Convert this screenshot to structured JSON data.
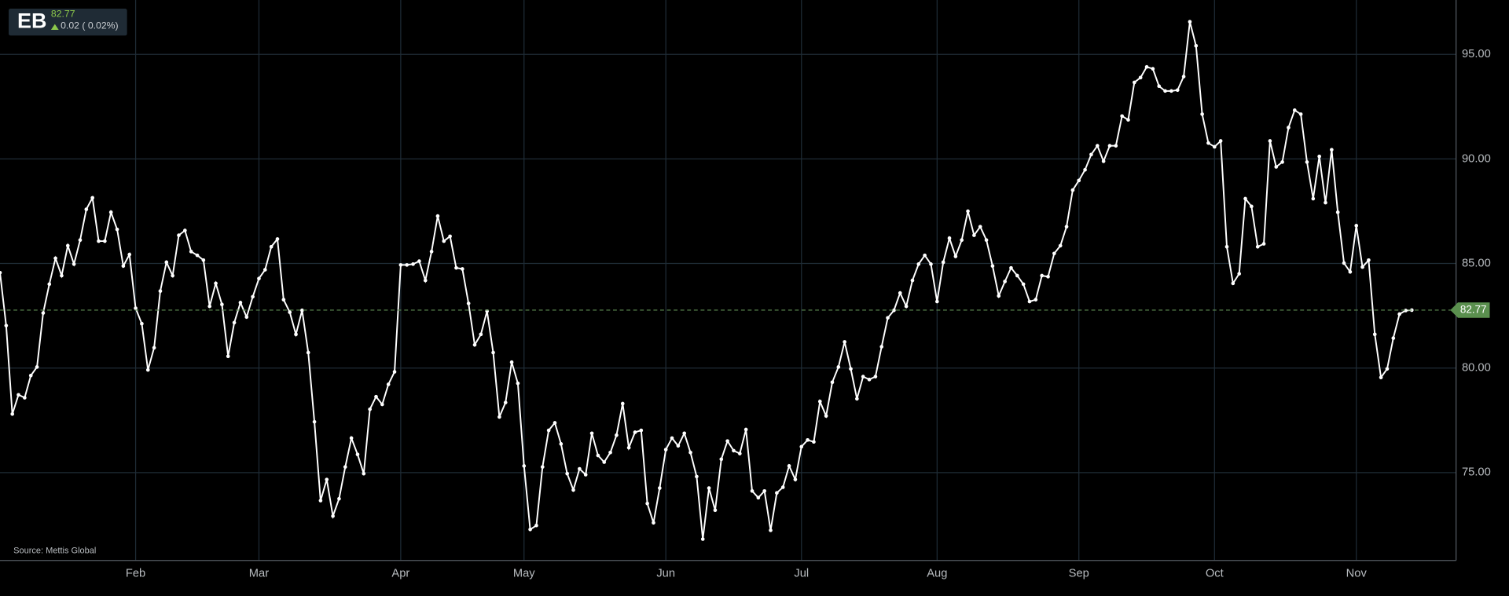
{
  "header": {
    "symbol": "EB",
    "price": "82.77",
    "change": "0.02 ( 0.02%)"
  },
  "chart_data": {
    "type": "line",
    "source": "Source: Mettis Global",
    "categories": [
      null,
      null,
      null,
      null,
      null,
      null,
      null,
      null,
      null,
      null,
      null,
      null,
      null,
      null,
      null,
      null,
      null,
      null,
      null,
      null,
      null,
      null,
      "Feb",
      null,
      null,
      null,
      null,
      null,
      null,
      null,
      null,
      null,
      null,
      null,
      null,
      null,
      null,
      null,
      null,
      null,
      null,
      null,
      "Mar",
      null,
      null,
      null,
      null,
      null,
      null,
      null,
      null,
      null,
      null,
      null,
      null,
      null,
      null,
      null,
      null,
      null,
      null,
      null,
      null,
      null,
      null,
      "Apr",
      null,
      null,
      null,
      null,
      null,
      null,
      null,
      null,
      null,
      null,
      null,
      null,
      null,
      null,
      null,
      null,
      null,
      null,
      null,
      "May",
      null,
      null,
      null,
      null,
      null,
      null,
      null,
      null,
      null,
      null,
      null,
      null,
      null,
      null,
      null,
      null,
      null,
      null,
      null,
      null,
      null,
      null,
      "Jun",
      null,
      null,
      null,
      null,
      null,
      null,
      null,
      null,
      null,
      null,
      null,
      null,
      null,
      null,
      null,
      null,
      null,
      null,
      null,
      null,
      null,
      "Jul",
      null,
      null,
      null,
      null,
      null,
      null,
      null,
      null,
      null,
      null,
      null,
      null,
      null,
      null,
      null,
      null,
      null,
      null,
      null,
      null,
      null,
      "Aug",
      null,
      null,
      null,
      null,
      null,
      null,
      null,
      null,
      null,
      null,
      null,
      null,
      null,
      null,
      null,
      null,
      null,
      null,
      null,
      null,
      null,
      null,
      "Sep",
      null,
      null,
      null,
      null,
      null,
      null,
      null,
      null,
      null,
      null,
      null,
      null,
      null,
      null,
      null,
      null,
      null,
      null,
      null,
      null,
      null,
      "Oct",
      null,
      null,
      null,
      null,
      null,
      null,
      null,
      null,
      null,
      null,
      null,
      null,
      null,
      null,
      null,
      null,
      null,
      null,
      null,
      null,
      null,
      null,
      "Nov",
      null,
      null,
      null,
      null,
      null,
      null,
      null,
      null,
      null
    ],
    "values": [
      84.56,
      82.03,
      77.8,
      78.72,
      78.58,
      79.64,
      80.05,
      82.63,
      84.01,
      85.25,
      84.42,
      85.85,
      84.97,
      86.12,
      87.59,
      88.14,
      86.07,
      86.07,
      87.45,
      86.63,
      84.88,
      85.43,
      82.86,
      82.12,
      79.91,
      80.97,
      83.68,
      85.06,
      84.42,
      86.35,
      86.58,
      85.57,
      85.39,
      85.16,
      82.95,
      84.05,
      83.04,
      80.56,
      82.17,
      83.13,
      82.44,
      83.41,
      84.28,
      84.7,
      85.8,
      86.17,
      83.27,
      82.67,
      81.61,
      82.76,
      80.74,
      77.43,
      73.66,
      74.67,
      72.92,
      73.75,
      75.27,
      76.65,
      75.87,
      74.95,
      78.03,
      78.63,
      78.26,
      79.22,
      79.82,
      84.93,
      84.93,
      84.97,
      85.11,
      84.19,
      85.57,
      87.27,
      86.07,
      86.3,
      84.79,
      84.74,
      83.09,
      81.11,
      81.61,
      82.72,
      80.74,
      77.66,
      78.35,
      80.28,
      79.27,
      75.32,
      72.28,
      72.47,
      75.27,
      77.02,
      77.38,
      76.37,
      74.95,
      74.17,
      75.18,
      74.9,
      76.88,
      75.82,
      75.5,
      75.96,
      76.79,
      78.3,
      76.19,
      76.93,
      77.02,
      73.52,
      72.6,
      74.26,
      76.1,
      76.65,
      76.28,
      76.88,
      75.96,
      74.81,
      71.82,
      74.26,
      73.2,
      75.64,
      76.51,
      76.05,
      75.91,
      77.06,
      74.12,
      73.8,
      74.12,
      72.24,
      74.03,
      74.3,
      75.32,
      74.67,
      76.24,
      76.56,
      76.47,
      78.4,
      77.71,
      79.32,
      80.05,
      81.25,
      79.96,
      78.53,
      79.59,
      79.45,
      79.59,
      81.02,
      82.4,
      82.76,
      83.59,
      82.95,
      84.19,
      84.97,
      85.39,
      84.97,
      83.18,
      85.06,
      86.21,
      85.34,
      86.12,
      87.5,
      86.35,
      86.76,
      86.12,
      84.88,
      83.45,
      84.14,
      84.79,
      84.42,
      84.01,
      83.18,
      83.27,
      84.42,
      84.37,
      85.48,
      85.85,
      86.76,
      88.51,
      88.97,
      89.48,
      90.21,
      90.63,
      89.89,
      90.63,
      90.63,
      92.05,
      91.87,
      93.66,
      93.89,
      94.4,
      94.31,
      93.48,
      93.25,
      93.25,
      93.29,
      93.94,
      96.56,
      95.41,
      92.14,
      90.76,
      90.58,
      90.86,
      85.8,
      84.05,
      84.51,
      88.1,
      87.73,
      85.8,
      85.94,
      90.86,
      89.62,
      89.85,
      91.5,
      92.33,
      92.14,
      89.85,
      88.1,
      90.12,
      87.91,
      90.44,
      87.45,
      85.02,
      84.6,
      86.81,
      84.83,
      85.16,
      81.61,
      79.55,
      79.96,
      81.43,
      82.58,
      82.75,
      82.77
    ],
    "color": "#ffffff",
    "ylim": [
      70.8,
      97.6
    ],
    "yticks": [
      {
        "value": 75,
        "label": "75.00"
      },
      {
        "value": 80,
        "label": "80.00"
      },
      {
        "value": 85,
        "label": "85.00"
      },
      {
        "value": 90,
        "label": "90.00"
      },
      {
        "value": 95,
        "label": "95.00"
      }
    ],
    "grid": true
  }
}
